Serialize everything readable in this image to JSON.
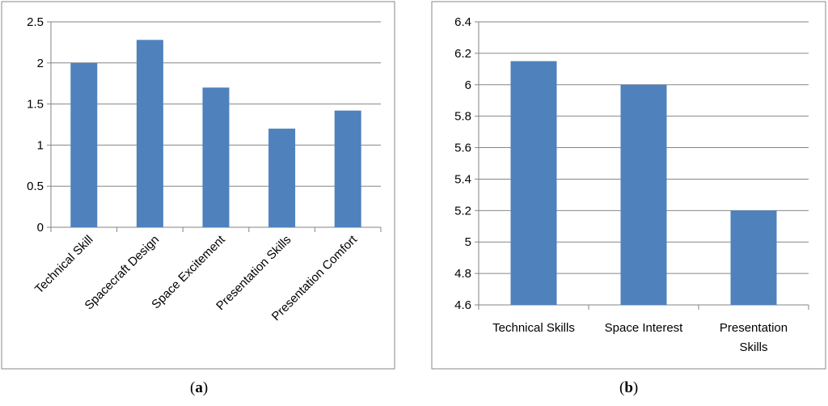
{
  "colors": {
    "bar": "#4F81BD",
    "grid": "#868686",
    "frame": "#878787",
    "text": "#000000"
  },
  "chart_data": [
    {
      "type": "bar",
      "panel": "a",
      "categories": [
        "Technical Skill",
        "Spacecraft Design",
        "Space Excitement",
        "Presentation Skills",
        "Presentation Comfort"
      ],
      "values": [
        2.0,
        2.28,
        1.7,
        1.2,
        1.42
      ],
      "ylim": [
        0,
        2.5
      ],
      "yticks": [
        "0",
        "0.5",
        "1",
        "1.5",
        "2",
        "2.5"
      ],
      "ytick_values": [
        0,
        0.5,
        1,
        1.5,
        2,
        2.5
      ],
      "title": "",
      "xlabel": "",
      "ylabel": "",
      "grid": true,
      "legend": "none",
      "xlabel_rotation": "-45deg"
    },
    {
      "type": "bar",
      "panel": "b",
      "categories": [
        "Technical Skills",
        "Space Interest",
        "Presentation Skills"
      ],
      "category_lines": [
        [
          "Technical Skills"
        ],
        [
          "Space Interest"
        ],
        [
          "Presentation",
          "Skills"
        ]
      ],
      "values": [
        6.15,
        6.0,
        5.2
      ],
      "ylim": [
        4.6,
        6.4
      ],
      "yticks": [
        "4.6",
        "4.8",
        "5",
        "5.2",
        "5.4",
        "5.6",
        "5.8",
        "6",
        "6.2",
        "6.4"
      ],
      "ytick_values": [
        4.6,
        4.8,
        5.0,
        5.2,
        5.4,
        5.6,
        5.8,
        6.0,
        6.2,
        6.4
      ],
      "title": "",
      "xlabel": "",
      "ylabel": "",
      "grid": true,
      "legend": "none"
    }
  ],
  "panel_labels": {
    "a": "a",
    "b": "b"
  }
}
